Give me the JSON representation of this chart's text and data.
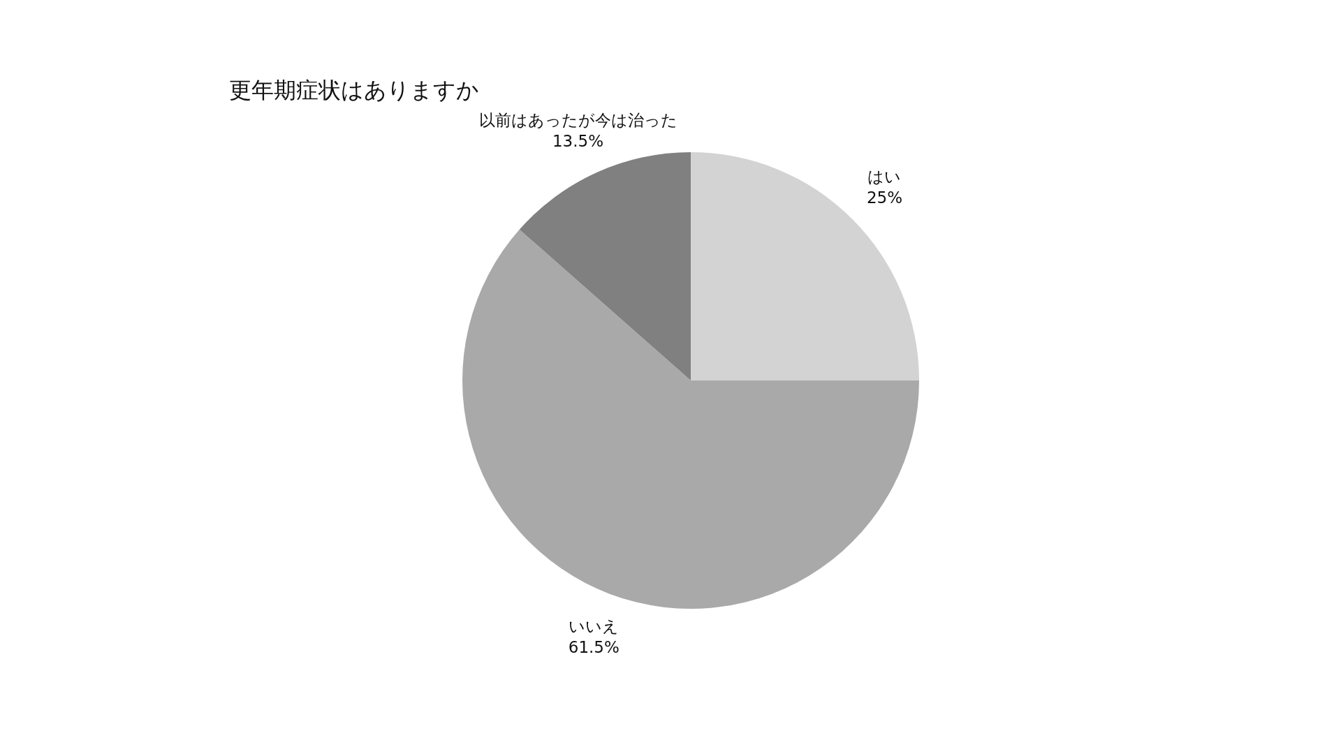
{
  "chart_data": {
    "type": "pie",
    "title": "更年期症状はありますか",
    "categories": [
      "はい",
      "いいえ",
      "以前はあったが今は治った"
    ],
    "values": [
      25,
      61.5,
      13.5
    ],
    "value_labels": [
      "25%",
      "61.5%",
      "13.5%"
    ],
    "colors": [
      "#d3d3d3",
      "#a9a9a9",
      "#808080"
    ]
  }
}
